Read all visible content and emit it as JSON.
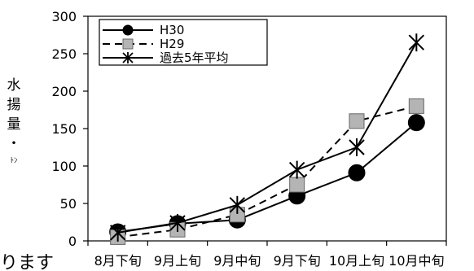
{
  "chart_data": {
    "type": "line",
    "title": "",
    "xlabel": "",
    "ylabel": {
      "chars": [
        "水",
        "揚",
        "量",
        "・"
      ],
      "unit": "ﾄﾝ"
    },
    "categories": [
      "8月下旬",
      "9月上旬",
      "9月中旬",
      "9月下旬",
      "10月上旬",
      "10月中旬"
    ],
    "ylim": [
      0,
      300
    ],
    "yticks": [
      0,
      50,
      100,
      150,
      200,
      250,
      300
    ],
    "grid": false,
    "legend_position": "top-left",
    "series": [
      {
        "name": "H30",
        "values": [
          12,
          23,
          28,
          60,
          91,
          158
        ],
        "marker": "circle",
        "line": "solid",
        "color": "#000000",
        "marker_fill": "#000000"
      },
      {
        "name": "H29",
        "values": [
          5,
          15,
          35,
          75,
          160,
          180
        ],
        "marker": "square",
        "line": "dashed",
        "color": "#000000",
        "marker_fill": "#b4b4b4"
      },
      {
        "name": "過去5年平均",
        "values": [
          11,
          24,
          48,
          95,
          125,
          265
        ],
        "marker": "asterisk",
        "line": "solid",
        "color": "#000000",
        "marker_fill": "none"
      }
    ]
  },
  "page_fragment": "ります"
}
